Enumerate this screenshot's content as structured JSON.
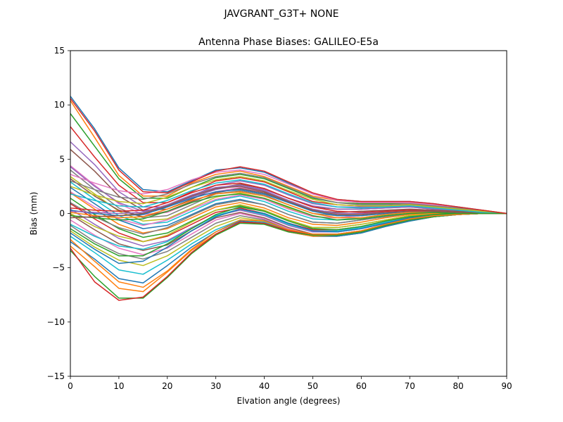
{
  "figure": {
    "suptitle": "JAVGRANT_G3T+   NONE"
  },
  "chart_data": {
    "type": "line",
    "title": "Antenna Phase Biases: GALILEO-E5a",
    "xlabel": "Elvation angle (degrees)",
    "ylabel": "Bias (mm)",
    "xlim": [
      0,
      90
    ],
    "ylim": [
      -15,
      15
    ],
    "xticks": [
      0,
      10,
      20,
      30,
      40,
      50,
      60,
      70,
      80,
      90
    ],
    "yticks": [
      -15,
      -10,
      -5,
      0,
      5,
      10,
      15
    ],
    "ytick_labels": [
      "−15",
      "−10",
      "−5",
      "0",
      "5",
      "10",
      "15"
    ],
    "grid": false,
    "legend": "none",
    "x": [
      0,
      5,
      10,
      15,
      20,
      25,
      30,
      35,
      40,
      45,
      50,
      55,
      60,
      65,
      70,
      75,
      80,
      85,
      90
    ],
    "series": [
      {
        "color": "#1f77b4",
        "values": [
          10.8,
          7.8,
          4.2,
          2.2,
          2.0,
          3.0,
          4.0,
          4.2,
          3.8,
          2.8,
          1.8,
          1.3,
          1.1,
          1.1,
          1.1,
          0.9,
          0.6,
          0.3,
          0.0
        ]
      },
      {
        "color": "#ff7f0e",
        "values": [
          10.4,
          7.0,
          3.5,
          1.6,
          1.6,
          2.8,
          3.6,
          3.9,
          3.4,
          2.5,
          1.6,
          1.2,
          1.0,
          1.0,
          1.0,
          0.8,
          0.5,
          0.3,
          0.0
        ]
      },
      {
        "color": "#2ca02c",
        "values": [
          9.2,
          6.2,
          3.2,
          1.4,
          1.4,
          2.4,
          3.3,
          3.6,
          3.2,
          2.3,
          1.4,
          1.0,
          0.9,
          0.9,
          0.9,
          0.7,
          0.5,
          0.2,
          0.0
        ]
      },
      {
        "color": "#d62728",
        "values": [
          8.0,
          5.2,
          2.6,
          1.0,
          1.0,
          2.0,
          3.0,
          3.3,
          2.9,
          2.0,
          1.1,
          0.8,
          0.7,
          0.7,
          0.8,
          0.6,
          0.4,
          0.2,
          0.0
        ]
      },
      {
        "color": "#9467bd",
        "values": [
          6.6,
          4.5,
          2.0,
          0.6,
          0.6,
          1.6,
          2.6,
          3.0,
          2.6,
          1.7,
          0.9,
          0.6,
          0.6,
          0.6,
          0.7,
          0.5,
          0.3,
          0.2,
          0.0
        ]
      },
      {
        "color": "#8c564b",
        "values": [
          5.9,
          3.9,
          1.6,
          0.3,
          0.4,
          1.3,
          2.3,
          2.7,
          2.3,
          1.4,
          0.6,
          0.4,
          0.4,
          0.5,
          0.6,
          0.4,
          0.3,
          0.1,
          0.0
        ]
      },
      {
        "color": "#e377c2",
        "values": [
          4.4,
          2.6,
          0.9,
          -0.1,
          0.1,
          1.0,
          2.0,
          2.4,
          2.0,
          1.1,
          0.3,
          0.1,
          0.2,
          0.3,
          0.4,
          0.3,
          0.2,
          0.1,
          0.0
        ]
      },
      {
        "color": "#7f7f7f",
        "values": [
          4.0,
          2.2,
          0.5,
          -0.4,
          -0.2,
          0.8,
          1.8,
          2.1,
          1.7,
          0.8,
          0.0,
          -0.2,
          0.0,
          0.2,
          0.3,
          0.3,
          0.2,
          0.1,
          0.0
        ]
      },
      {
        "color": "#bcbd22",
        "values": [
          3.4,
          1.8,
          0.2,
          -0.7,
          -0.5,
          0.5,
          1.5,
          1.9,
          1.4,
          0.5,
          -0.3,
          -0.4,
          -0.2,
          0.0,
          0.2,
          0.2,
          0.1,
          0.1,
          0.0
        ]
      },
      {
        "color": "#17becf",
        "values": [
          2.9,
          1.3,
          -0.2,
          -1.0,
          -0.8,
          0.2,
          1.2,
          1.6,
          1.1,
          0.2,
          -0.5,
          -0.6,
          -0.4,
          -0.1,
          0.1,
          0.1,
          0.1,
          0.0,
          0.0
        ]
      },
      {
        "color": "#1f77b4",
        "values": [
          2.4,
          0.9,
          -0.6,
          -1.4,
          -1.1,
          -0.1,
          0.9,
          1.3,
          0.8,
          -0.1,
          -0.8,
          -0.9,
          -0.6,
          -0.3,
          0.0,
          0.1,
          0.1,
          0.0,
          0.0
        ]
      },
      {
        "color": "#ff7f0e",
        "values": [
          1.9,
          0.4,
          -1.0,
          -1.8,
          -1.4,
          -0.4,
          0.6,
          1.0,
          0.5,
          -0.4,
          -1.0,
          -1.1,
          -0.8,
          -0.4,
          -0.1,
          0.0,
          0.0,
          0.0,
          0.0
        ]
      },
      {
        "color": "#2ca02c",
        "values": [
          1.4,
          -0.1,
          -1.4,
          -2.2,
          -1.8,
          -0.7,
          0.3,
          0.7,
          0.2,
          -0.6,
          -1.3,
          -1.3,
          -1.0,
          -0.6,
          -0.2,
          -0.1,
          0.0,
          0.0,
          0.0
        ]
      },
      {
        "color": "#d62728",
        "values": [
          0.9,
          -0.5,
          -1.8,
          -2.6,
          -2.1,
          -1.0,
          0.1,
          0.5,
          0.0,
          -0.9,
          -1.5,
          -1.5,
          -1.2,
          -0.7,
          -0.3,
          -0.1,
          0.0,
          0.0,
          0.0
        ]
      },
      {
        "color": "#9467bd",
        "values": [
          0.4,
          -1.0,
          -2.3,
          -3.0,
          -2.5,
          -1.3,
          -0.2,
          0.3,
          -0.2,
          -1.1,
          -1.7,
          -1.7,
          -1.4,
          -0.9,
          -0.4,
          -0.2,
          -0.1,
          0.0,
          0.0
        ]
      },
      {
        "color": "#8c564b",
        "values": [
          -0.1,
          -1.5,
          -2.8,
          -3.4,
          -2.9,
          -1.6,
          -0.4,
          0.1,
          -0.4,
          -1.3,
          -1.9,
          -1.9,
          -1.6,
          -1.0,
          -0.5,
          -0.2,
          -0.1,
          0.0,
          0.0
        ]
      },
      {
        "color": "#e377c2",
        "values": [
          -0.6,
          -2.0,
          -3.2,
          -3.8,
          -3.2,
          -1.9,
          -0.6,
          0.0,
          -0.5,
          -1.4,
          -2.0,
          -2.0,
          -1.7,
          -1.1,
          -0.6,
          -0.3,
          -0.1,
          0.0,
          0.0
        ]
      },
      {
        "color": "#7f7f7f",
        "values": [
          -1.1,
          -2.6,
          -3.7,
          -4.2,
          -3.5,
          -2.2,
          -0.9,
          -0.2,
          -0.6,
          -1.5,
          -2.1,
          -2.1,
          -1.8,
          -1.2,
          -0.7,
          -0.3,
          -0.1,
          0.0,
          0.0
        ]
      },
      {
        "color": "#bcbd22",
        "values": [
          -1.6,
          -3.1,
          -4.3,
          -4.8,
          -3.9,
          -2.5,
          -1.2,
          -0.4,
          -0.7,
          -1.6,
          -2.1,
          -2.1,
          -1.8,
          -1.2,
          -0.7,
          -0.3,
          -0.1,
          0.0,
          0.0
        ]
      },
      {
        "color": "#17becf",
        "values": [
          -2.1,
          -3.6,
          -5.2,
          -5.6,
          -4.3,
          -2.8,
          -1.5,
          -0.6,
          -0.8,
          -1.6,
          -2.1,
          -2.1,
          -1.8,
          -1.2,
          -0.7,
          -0.3,
          -0.1,
          0.0,
          0.0
        ]
      },
      {
        "color": "#1f77b4",
        "values": [
          -2.6,
          -4.2,
          -6.0,
          -6.4,
          -4.8,
          -3.1,
          -1.7,
          -0.7,
          -0.9,
          -1.7,
          -2.1,
          -2.1,
          -1.8,
          -1.2,
          -0.7,
          -0.3,
          -0.1,
          0.0,
          0.0
        ]
      },
      {
        "color": "#ff7f0e",
        "values": [
          -3.0,
          -4.9,
          -6.9,
          -7.2,
          -5.4,
          -3.4,
          -1.9,
          -0.8,
          -1.0,
          -1.7,
          -2.1,
          -2.0,
          -1.7,
          -1.1,
          -0.6,
          -0.3,
          -0.1,
          0.0,
          0.0
        ]
      },
      {
        "color": "#2ca02c",
        "values": [
          -3.4,
          -5.8,
          -7.8,
          -7.8,
          -5.9,
          -3.7,
          -2.0,
          -0.9,
          -1.0,
          -1.7,
          -2.0,
          -2.0,
          -1.7,
          -1.1,
          -0.6,
          -0.3,
          -0.1,
          0.0,
          0.0
        ]
      },
      {
        "color": "#d62728",
        "values": [
          -3.2,
          -6.3,
          -8.0,
          -7.7,
          -5.8,
          -3.6,
          -1.9,
          -0.8,
          -0.9,
          -1.6,
          -1.9,
          -1.9,
          -1.6,
          -1.0,
          -0.5,
          -0.2,
          -0.1,
          0.0,
          0.0
        ]
      },
      {
        "color": "#9467bd",
        "values": [
          4.3,
          2.5,
          1.0,
          0.2,
          0.6,
          1.5,
          2.2,
          2.6,
          2.2,
          1.4,
          0.7,
          0.4,
          0.4,
          0.5,
          0.6,
          0.4,
          0.3,
          0.1,
          0.0
        ]
      },
      {
        "color": "#8c564b",
        "values": [
          3.2,
          1.6,
          0.3,
          -0.3,
          0.2,
          1.1,
          1.9,
          2.3,
          1.9,
          1.0,
          0.3,
          0.1,
          0.2,
          0.3,
          0.4,
          0.3,
          0.2,
          0.1,
          0.0
        ]
      },
      {
        "color": "#e377c2",
        "values": [
          2.0,
          0.6,
          -0.5,
          -1.1,
          -0.6,
          0.4,
          1.3,
          1.7,
          1.3,
          0.4,
          -0.3,
          -0.4,
          -0.2,
          0.0,
          0.2,
          0.2,
          0.1,
          0.0,
          0.0
        ]
      },
      {
        "color": "#7f7f7f",
        "values": [
          1.0,
          -0.3,
          -1.3,
          -1.9,
          -1.3,
          -0.2,
          0.8,
          1.2,
          0.8,
          -0.1,
          -0.8,
          -0.9,
          -0.6,
          -0.3,
          0.0,
          0.1,
          0.0,
          0.0,
          0.0
        ]
      },
      {
        "color": "#bcbd22",
        "values": [
          0.0,
          -1.2,
          -2.1,
          -2.6,
          -2.0,
          -0.8,
          0.3,
          0.8,
          0.3,
          -0.6,
          -1.3,
          -1.3,
          -1.0,
          -0.6,
          -0.2,
          -0.1,
          0.0,
          0.0,
          0.0
        ]
      },
      {
        "color": "#17becf",
        "values": [
          -1.0,
          -2.1,
          -3.0,
          -3.3,
          -2.6,
          -1.4,
          -0.2,
          0.4,
          -0.1,
          -1.0,
          -1.6,
          -1.6,
          -1.3,
          -0.8,
          -0.4,
          -0.2,
          -0.1,
          0.0,
          0.0
        ]
      },
      {
        "color": "#1f77b4",
        "values": [
          0.3,
          0.0,
          -0.2,
          -0.1,
          0.6,
          1.4,
          2.0,
          2.2,
          1.8,
          1.0,
          0.2,
          -0.2,
          -0.2,
          0.0,
          0.2,
          0.2,
          0.1,
          0.0,
          0.0
        ]
      },
      {
        "color": "#ff7f0e",
        "values": [
          0.1,
          -0.2,
          -0.4,
          -0.3,
          0.4,
          1.2,
          1.8,
          2.0,
          1.6,
          0.8,
          0.0,
          -0.4,
          -0.4,
          -0.1,
          0.1,
          0.1,
          0.1,
          0.0,
          0.0
        ]
      },
      {
        "color": "#2ca02c",
        "values": [
          -0.2,
          -0.4,
          -0.6,
          -0.5,
          0.2,
          1.0,
          1.6,
          1.8,
          1.4,
          0.6,
          -0.2,
          -0.6,
          -0.5,
          -0.2,
          0.0,
          0.1,
          0.0,
          0.0,
          0.0
        ]
      },
      {
        "color": "#d62728",
        "values": [
          0.5,
          0.3,
          0.2,
          0.3,
          1.0,
          1.9,
          2.6,
          2.8,
          2.3,
          1.4,
          0.6,
          0.2,
          0.1,
          0.2,
          0.3,
          0.2,
          0.1,
          0.0,
          0.0
        ]
      },
      {
        "color": "#9467bd",
        "values": [
          0.2,
          0.1,
          0.0,
          0.1,
          0.8,
          1.7,
          2.4,
          2.6,
          2.1,
          1.2,
          0.4,
          0.0,
          0.0,
          0.1,
          0.2,
          0.2,
          0.1,
          0.0,
          0.0
        ]
      },
      {
        "color": "#8c564b",
        "values": [
          -0.4,
          -0.3,
          -0.2,
          0.0,
          0.7,
          1.6,
          2.3,
          2.5,
          2.0,
          1.1,
          0.3,
          -0.1,
          -0.1,
          0.1,
          0.2,
          0.2,
          0.1,
          0.0,
          0.0
        ]
      },
      {
        "color": "#e377c2",
        "values": [
          3.6,
          2.8,
          2.1,
          1.8,
          2.2,
          3.1,
          3.8,
          4.0,
          3.6,
          2.7,
          1.8,
          1.2,
          1.0,
          1.0,
          1.0,
          0.8,
          0.5,
          0.2,
          0.0
        ]
      },
      {
        "color": "#7f7f7f",
        "values": [
          3.0,
          2.2,
          1.5,
          1.3,
          1.8,
          2.7,
          3.4,
          3.7,
          3.3,
          2.4,
          1.5,
          1.0,
          0.8,
          0.8,
          0.9,
          0.7,
          0.5,
          0.2,
          0.0
        ]
      },
      {
        "color": "#bcbd22",
        "values": [
          2.5,
          1.7,
          1.1,
          0.9,
          1.5,
          2.4,
          3.1,
          3.4,
          3.0,
          2.1,
          1.3,
          0.8,
          0.7,
          0.7,
          0.8,
          0.6,
          0.4,
          0.2,
          0.0
        ]
      },
      {
        "color": "#17becf",
        "values": [
          1.8,
          1.2,
          0.7,
          0.6,
          1.2,
          2.1,
          2.8,
          3.1,
          2.7,
          1.8,
          1.0,
          0.6,
          0.5,
          0.6,
          0.7,
          0.5,
          0.3,
          0.1,
          0.0
        ]
      },
      {
        "color": "#1f77b4",
        "values": [
          -1.8,
          -3.3,
          -4.6,
          -4.4,
          -3.1,
          -1.6,
          -0.3,
          0.4,
          0.0,
          -0.9,
          -1.6,
          -1.7,
          -1.4,
          -0.9,
          -0.4,
          -0.2,
          -0.1,
          0.0,
          0.0
        ]
      },
      {
        "color": "#ff7f0e",
        "values": [
          -2.4,
          -4.4,
          -6.3,
          -6.8,
          -5.3,
          -3.3,
          -1.7,
          -0.6,
          -0.7,
          -1.5,
          -1.9,
          -1.9,
          -1.6,
          -1.0,
          -0.5,
          -0.2,
          -0.1,
          0.0,
          0.0
        ]
      },
      {
        "color": "#2ca02c",
        "values": [
          -1.4,
          -2.8,
          -3.9,
          -3.9,
          -2.8,
          -1.4,
          -0.1,
          0.6,
          0.2,
          -0.7,
          -1.4,
          -1.5,
          -1.2,
          -0.7,
          -0.3,
          -0.1,
          0.0,
          0.0,
          0.0
        ]
      },
      {
        "color": "#d62728",
        "values": [
          10.6,
          7.6,
          4.0,
          2.0,
          1.9,
          2.9,
          3.9,
          4.3,
          3.9,
          2.9,
          1.9,
          1.3,
          1.1,
          1.1,
          1.1,
          0.9,
          0.6,
          0.3,
          0.0
        ]
      }
    ]
  }
}
